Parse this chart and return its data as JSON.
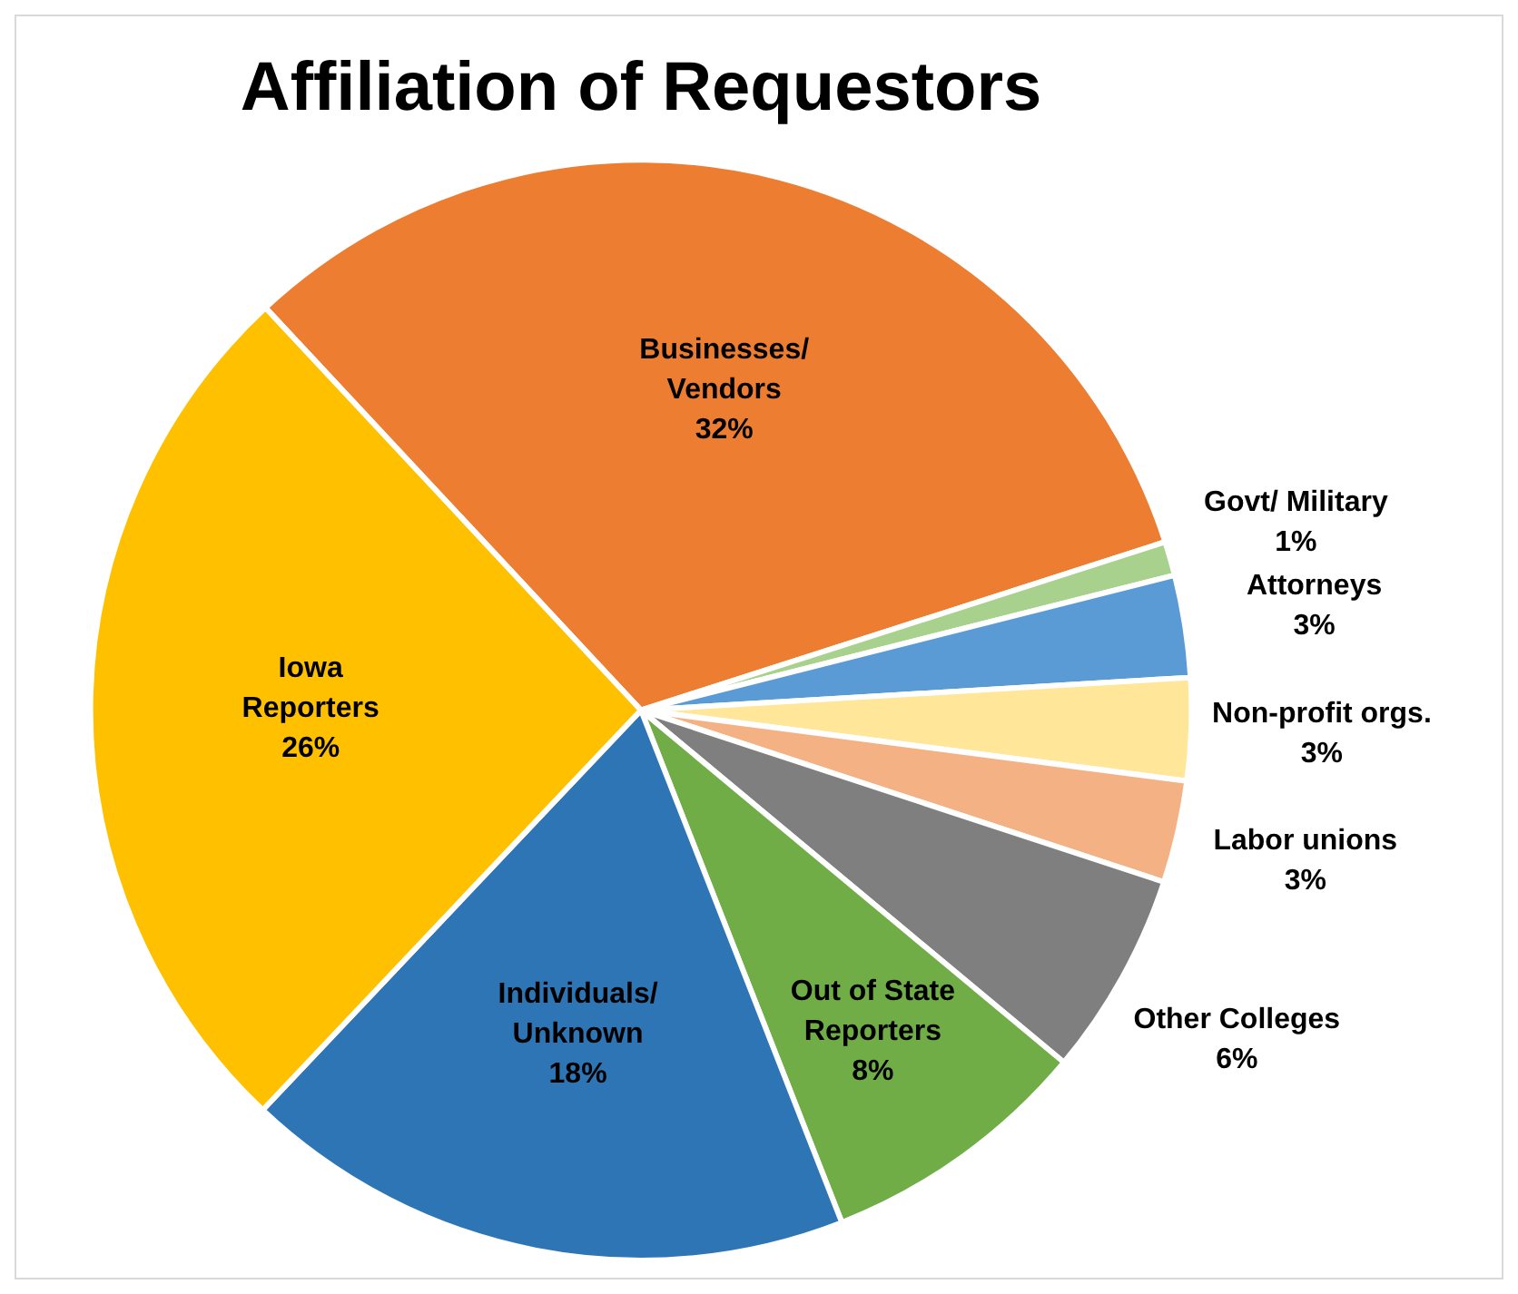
{
  "chart_data": {
    "type": "pie",
    "title": "Affiliation of Requestors",
    "categories": [
      "Businesses/ Vendors",
      "Govt/ Military",
      "Attorneys",
      "Non-profit orgs.",
      "Labor unions",
      "Other Colleges",
      "Out of State Reporters",
      "Individuals/ Unknown",
      "Iowa Reporters"
    ],
    "values": [
      32,
      1,
      3,
      3,
      3,
      6,
      8,
      18,
      26
    ],
    "colors": [
      "#ed7d31",
      "#a9d18e",
      "#5b9bd5",
      "#ffe699",
      "#f4b183",
      "#7f7f7f",
      "#70ad47",
      "#2e75b6",
      "#ffc000"
    ],
    "value_labels": [
      "32%",
      "1%",
      "3%",
      "3%",
      "3%",
      "6%",
      "8%",
      "18%",
      "26%"
    ]
  }
}
